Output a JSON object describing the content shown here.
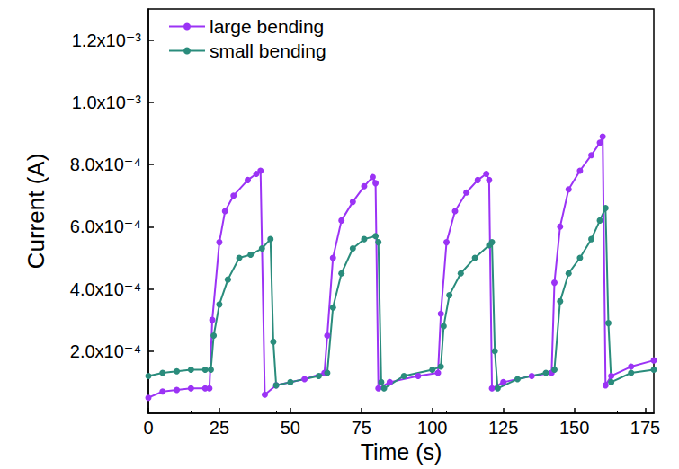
{
  "chart_data": {
    "type": "line",
    "x_label": "Time (s)",
    "y_label": "Current (A)",
    "xlim": [
      0,
      178
    ],
    "xticks": [
      0,
      25,
      50,
      75,
      100,
      125,
      150,
      175
    ],
    "ylim": [
      0,
      0.0013
    ],
    "yticks": [
      {
        "value": 0.0002,
        "label": "2.0x10⁻⁴"
      },
      {
        "value": 0.0004,
        "label": "4.0x10⁻⁴"
      },
      {
        "value": 0.0006,
        "label": "6.0x10⁻⁴"
      },
      {
        "value": 0.0008,
        "label": "8.0x10⁻⁴"
      },
      {
        "value": 0.001,
        "label": "1.0x10⁻³"
      },
      {
        "value": 0.0012,
        "label": "1.2x10⁻³"
      }
    ],
    "grid": false,
    "legend": "upper left",
    "marker": "circle",
    "series": [
      {
        "name": "large bending",
        "color": "#9b33f5",
        "x": [
          0,
          5,
          10,
          15,
          20,
          21.5,
          22.5,
          25,
          27,
          30,
          35,
          38,
          39.5,
          41,
          45,
          55,
          62,
          63,
          65,
          68,
          72,
          76,
          79,
          80,
          81,
          85,
          95,
          102,
          103,
          105,
          108,
          112,
          116,
          119,
          120,
          121,
          125,
          135,
          142,
          143,
          145,
          148,
          152,
          156,
          159,
          160,
          161,
          163,
          170,
          178
        ],
        "values": [
          5e-05,
          7e-05,
          7.5e-05,
          8e-05,
          8e-05,
          8e-05,
          0.0003,
          0.00055,
          0.00065,
          0.0007,
          0.00075,
          0.00077,
          0.00078,
          6e-05,
          9e-05,
          0.00011,
          0.00013,
          0.00025,
          0.0005,
          0.00062,
          0.00068,
          0.00073,
          0.00076,
          0.00074,
          8e-05,
          0.0001,
          0.00012,
          0.00013,
          0.00032,
          0.00055,
          0.00065,
          0.00071,
          0.00075,
          0.00077,
          0.00075,
          8e-05,
          0.0001,
          0.00012,
          0.00013,
          0.00042,
          0.0006,
          0.00072,
          0.00078,
          0.00083,
          0.00087,
          0.00089,
          9e-05,
          0.00012,
          0.00015,
          0.00017
        ]
      },
      {
        "name": "small bending",
        "color": "#2a8c7c",
        "x": [
          0,
          5,
          10,
          15,
          20,
          22,
          23,
          25,
          28,
          32,
          36,
          40,
          43,
          44,
          45,
          50,
          60,
          63,
          65,
          68,
          72,
          76,
          80,
          81,
          82,
          83,
          90,
          100,
          103,
          104,
          106,
          110,
          115,
          120,
          121,
          122,
          123,
          130,
          140,
          143,
          145,
          148,
          152,
          156,
          159,
          161,
          162,
          163,
          170,
          178
        ],
        "values": [
          0.00012,
          0.00013,
          0.000135,
          0.00014,
          0.00014,
          0.00014,
          0.00025,
          0.00035,
          0.00043,
          0.0005,
          0.00051,
          0.00053,
          0.00056,
          0.00023,
          9e-05,
          0.0001,
          0.00012,
          0.00013,
          0.00034,
          0.00045,
          0.00053,
          0.00056,
          0.00057,
          0.00055,
          0.0001,
          8e-05,
          0.00012,
          0.00014,
          0.00015,
          0.00028,
          0.00038,
          0.00045,
          0.0005,
          0.00054,
          0.00055,
          0.0002,
          8e-05,
          0.00011,
          0.00013,
          0.00014,
          0.00036,
          0.00045,
          0.0005,
          0.00056,
          0.00062,
          0.00066,
          0.00029,
          0.0001,
          0.00013,
          0.00014
        ]
      }
    ]
  }
}
